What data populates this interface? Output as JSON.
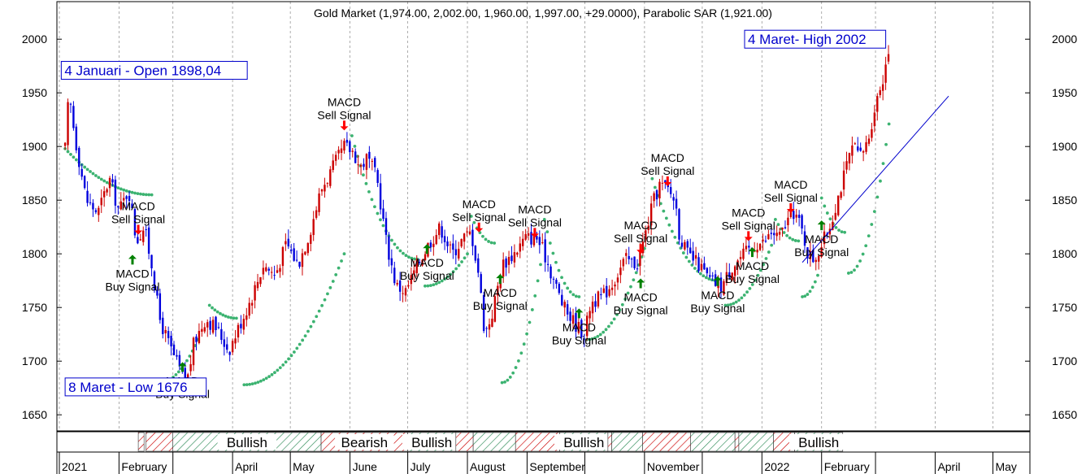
{
  "chart_data": {
    "type": "candlestick",
    "title": "Gold Market (1,974.00, 2,002.00, 1,960.00, 1,997.00, +29.0000), Parabolic SAR (1,921.00)",
    "ylim": [
      1635,
      2035
    ],
    "yticks": [
      1650,
      1700,
      1750,
      1800,
      1850,
      1900,
      1950,
      2000
    ],
    "ytick_labels": [
      "1650",
      "1700",
      "1750",
      "1800",
      "1850",
      "1900",
      "1950",
      "2000"
    ],
    "grid": true,
    "x_months": [
      {
        "label": "2021",
        "day": 0
      },
      {
        "label": "February",
        "day": 31
      },
      {
        "label": "April",
        "day": 90
      },
      {
        "label": "May",
        "day": 120
      },
      {
        "label": "June",
        "day": 151
      },
      {
        "label": "July",
        "day": 181
      },
      {
        "label": "August",
        "day": 212
      },
      {
        "label": "September",
        "day": 243
      },
      {
        "label": "November",
        "day": 304
      },
      {
        "label": "2022",
        "day": 365
      },
      {
        "label": "February",
        "day": 396
      },
      {
        "label": "April",
        "day": 455
      },
      {
        "label": "May",
        "day": 485
      }
    ],
    "x_gridlines": [
      0,
      31,
      59,
      90,
      120,
      151,
      181,
      212,
      243,
      273,
      304,
      334,
      365,
      396,
      424,
      455,
      485
    ],
    "xlim": [
      0,
      500
    ],
    "price_path": [
      [
        3,
        1898
      ],
      [
        5,
        1950
      ],
      [
        8,
        1910
      ],
      [
        14,
        1850
      ],
      [
        20,
        1838
      ],
      [
        26,
        1870
      ],
      [
        31,
        1840
      ],
      [
        36,
        1860
      ],
      [
        40,
        1812
      ],
      [
        44,
        1825
      ],
      [
        48,
        1790
      ],
      [
        52,
        1740
      ],
      [
        57,
        1715
      ],
      [
        63,
        1690
      ],
      [
        66,
        1678
      ],
      [
        70,
        1718
      ],
      [
        76,
        1740
      ],
      [
        82,
        1730
      ],
      [
        88,
        1710
      ],
      [
        94,
        1735
      ],
      [
        100,
        1760
      ],
      [
        106,
        1790
      ],
      [
        112,
        1780
      ],
      [
        118,
        1810
      ],
      [
        124,
        1790
      ],
      [
        130,
        1820
      ],
      [
        136,
        1860
      ],
      [
        142,
        1880
      ],
      [
        148,
        1900
      ],
      [
        153,
        1895
      ],
      [
        156,
        1880
      ],
      [
        160,
        1890
      ],
      [
        165,
        1870
      ],
      [
        170,
        1810
      ],
      [
        175,
        1770
      ],
      [
        180,
        1765
      ],
      [
        186,
        1790
      ],
      [
        192,
        1810
      ],
      [
        198,
        1825
      ],
      [
        204,
        1800
      ],
      [
        210,
        1815
      ],
      [
        214,
        1820
      ],
      [
        218,
        1780
      ],
      [
        221,
        1725
      ],
      [
        225,
        1745
      ],
      [
        230,
        1790
      ],
      [
        236,
        1800
      ],
      [
        242,
        1815
      ],
      [
        248,
        1815
      ],
      [
        252,
        1800
      ],
      [
        256,
        1780
      ],
      [
        262,
        1750
      ],
      [
        268,
        1735
      ],
      [
        273,
        1725
      ],
      [
        276,
        1755
      ],
      [
        282,
        1760
      ],
      [
        288,
        1775
      ],
      [
        294,
        1795
      ],
      [
        300,
        1790
      ],
      [
        304,
        1815
      ],
      [
        308,
        1845
      ],
      [
        312,
        1865
      ],
      [
        316,
        1860
      ],
      [
        320,
        1850
      ],
      [
        322,
        1820
      ],
      [
        326,
        1800
      ],
      [
        332,
        1790
      ],
      [
        338,
        1775
      ],
      [
        344,
        1770
      ],
      [
        350,
        1790
      ],
      [
        356,
        1800
      ],
      [
        362,
        1810
      ],
      [
        366,
        1810
      ],
      [
        370,
        1820
      ],
      [
        374,
        1815
      ],
      [
        378,
        1830
      ],
      [
        382,
        1840
      ],
      [
        386,
        1820
      ],
      [
        389,
        1800
      ],
      [
        392,
        1795
      ],
      [
        396,
        1808
      ],
      [
        400,
        1825
      ],
      [
        404,
        1850
      ],
      [
        408,
        1875
      ],
      [
        412,
        1900
      ],
      [
        416,
        1890
      ],
      [
        420,
        1905
      ],
      [
        424,
        1940
      ],
      [
        428,
        1965
      ],
      [
        431,
        1995
      ]
    ],
    "sar_segments": [
      {
        "from": [
          3,
          1898
        ],
        "to": [
          48,
          1855
        ],
        "dir": "down"
      },
      {
        "from": [
          52,
          1680
        ],
        "to": [
          72,
          1720
        ],
        "dir": "up"
      },
      {
        "from": [
          78,
          1752
        ],
        "to": [
          92,
          1740
        ],
        "dir": "down"
      },
      {
        "from": [
          96,
          1678
        ],
        "to": [
          148,
          1800
        ],
        "dir": "up"
      },
      {
        "from": [
          152,
          1910
        ],
        "to": [
          186,
          1795
        ],
        "dir": "down"
      },
      {
        "from": [
          190,
          1770
        ],
        "to": [
          212,
          1800
        ],
        "dir": "up"
      },
      {
        "from": [
          214,
          1835
        ],
        "to": [
          226,
          1810
        ],
        "dir": "down"
      },
      {
        "from": [
          230,
          1680
        ],
        "to": [
          250,
          1790
        ],
        "dir": "up"
      },
      {
        "from": [
          252,
          1832
        ],
        "to": [
          270,
          1760
        ],
        "dir": "down"
      },
      {
        "from": [
          274,
          1720
        ],
        "to": [
          304,
          1805
        ],
        "dir": "up"
      },
      {
        "from": [
          308,
          1870
        ],
        "to": [
          342,
          1775
        ],
        "dir": "down"
      },
      {
        "from": [
          346,
          1752
        ],
        "to": [
          370,
          1808
        ],
        "dir": "up"
      },
      {
        "from": [
          372,
          1832
        ],
        "to": [
          384,
          1812
        ],
        "dir": "down"
      },
      {
        "from": [
          386,
          1760
        ],
        "to": [
          394,
          1780
        ],
        "dir": "up"
      },
      {
        "from": [
          396,
          1852
        ],
        "to": [
          408,
          1820
        ],
        "dir": "down"
      },
      {
        "from": [
          410,
          1782
        ],
        "to": [
          431,
          1921
        ],
        "dir": "up"
      }
    ],
    "trendline": {
      "from": [
        386,
        1792
      ],
      "to": [
        462,
        1947
      ]
    },
    "signals": [
      {
        "type": "sell",
        "day": 41,
        "price": 1818,
        "text": [
          "MACD",
          "Sell Signal"
        ]
      },
      {
        "type": "buy",
        "day": 38,
        "price": 1790,
        "text": [
          "MACD",
          "Buy Signal"
        ]
      },
      {
        "type": "buy",
        "day": 64,
        "price": 1690,
        "text": [
          "MACD",
          "Buy Signal"
        ]
      },
      {
        "type": "sell",
        "day": 148,
        "price": 1915,
        "text": [
          "MACD",
          "Sell Signal"
        ]
      },
      {
        "type": "buy",
        "day": 191,
        "price": 1800,
        "text": [
          "MACD",
          "Buy Signal"
        ]
      },
      {
        "type": "sell",
        "day": 218,
        "price": 1820,
        "text": [
          "MACD",
          "Sell Signal"
        ]
      },
      {
        "type": "buy",
        "day": 229,
        "price": 1772,
        "text": [
          "MACD",
          "Buy Signal"
        ]
      },
      {
        "type": "sell",
        "day": 247,
        "price": 1815,
        "text": [
          "MACD",
          "Sell Signal"
        ]
      },
      {
        "type": "buy",
        "day": 270,
        "price": 1740,
        "text": [
          "MACD",
          "Buy Signal"
        ]
      },
      {
        "type": "sell",
        "day": 302,
        "price": 1800,
        "text": [
          "MACD",
          "Sell Signal"
        ]
      },
      {
        "type": "buy",
        "day": 302,
        "price": 1768,
        "text": [
          "MACD",
          "Buy Signal"
        ]
      },
      {
        "type": "sell",
        "day": 316,
        "price": 1863,
        "text": [
          "MACD",
          "Sell Signal"
        ]
      },
      {
        "type": "buy",
        "day": 342,
        "price": 1770,
        "text": [
          "MACD",
          "Buy Signal"
        ]
      },
      {
        "type": "sell",
        "day": 358,
        "price": 1812,
        "text": [
          "MACD",
          "Sell Signal"
        ]
      },
      {
        "type": "buy",
        "day": 360,
        "price": 1797,
        "text": [
          "MACD",
          "Buy Signal"
        ]
      },
      {
        "type": "sell",
        "day": 380,
        "price": 1838,
        "text": [
          "MACD",
          "Sell Signal"
        ]
      },
      {
        "type": "buy",
        "day": 396,
        "price": 1822,
        "text": [
          "MACD",
          "Buy Signal"
        ]
      }
    ],
    "annotations": [
      {
        "text": "4 Januari - Open 1898,04",
        "day": 1,
        "price": 1971
      },
      {
        "text": "4 Maret- High 2002",
        "day": 356,
        "price": 2000
      },
      {
        "text": "8 Maret - Low 1676",
        "day": 3,
        "price": 1676
      }
    ],
    "trend_bar": [
      {
        "state": "bearish",
        "from": 41,
        "to": 44,
        "label": ""
      },
      {
        "state": "bearish",
        "from": 45,
        "to": 59,
        "label": ""
      },
      {
        "state": "bullish",
        "from": 59,
        "to": 136,
        "label": "Bullish"
      },
      {
        "state": "bearish",
        "from": 136,
        "to": 181,
        "label": "Bearish"
      },
      {
        "state": "bullish",
        "from": 181,
        "to": 206,
        "label": "Bullish"
      },
      {
        "state": "bearish",
        "from": 206,
        "to": 215,
        "label": ""
      },
      {
        "state": "bullish",
        "from": 215,
        "to": 237,
        "label": ""
      },
      {
        "state": "bearish",
        "from": 237,
        "to": 260,
        "label": ""
      },
      {
        "state": "bullish",
        "from": 260,
        "to": 285,
        "label": "Bullish"
      },
      {
        "state": "bearish",
        "from": 285,
        "to": 287,
        "label": ""
      },
      {
        "state": "bullish",
        "from": 287,
        "to": 303,
        "label": ""
      },
      {
        "state": "bearish",
        "from": 303,
        "to": 328,
        "label": ""
      },
      {
        "state": "bullish",
        "from": 328,
        "to": 351,
        "label": ""
      },
      {
        "state": "bearish",
        "from": 351,
        "to": 353,
        "label": ""
      },
      {
        "state": "bullish",
        "from": 353,
        "to": 371,
        "label": ""
      },
      {
        "state": "bearish",
        "from": 371,
        "to": 382,
        "label": ""
      },
      {
        "state": "bullish",
        "from": 382,
        "to": 407,
        "label": "Bullish"
      }
    ],
    "colors": {
      "up_candle": "#cc0000",
      "down_candle": "#0000dd",
      "sar": "#3cb371",
      "buy_arrow": "#008000",
      "sell_arrow": "#ff0000",
      "annotation": "#0000cc",
      "bullish_hatch": "#2e8b57",
      "bearish_hatch": "#cc0000",
      "grid": "#999999",
      "trendline": "#0000cc"
    }
  }
}
